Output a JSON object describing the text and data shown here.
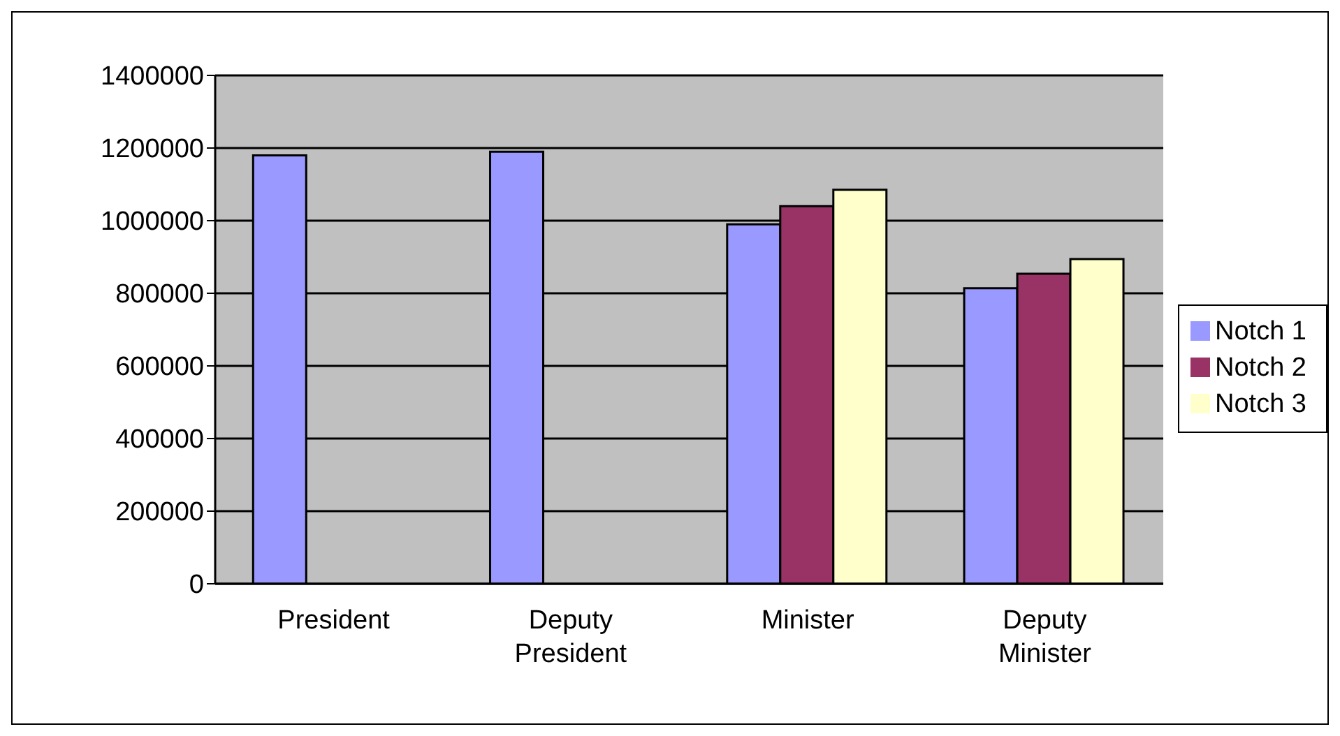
{
  "chart_data": {
    "type": "bar",
    "categories": [
      "President",
      "Deputy President",
      "Minister",
      "Deputy Minister"
    ],
    "series": [
      {
        "name": "Notch 1",
        "color": "#9999ff",
        "values": [
          1180000,
          1190000,
          990000,
          814000
        ]
      },
      {
        "name": "Notch 2",
        "color": "#993366",
        "values": [
          null,
          null,
          1040000,
          854000
        ]
      },
      {
        "name": "Notch 3",
        "color": "#ffffcc",
        "values": [
          null,
          null,
          1085000,
          894000
        ]
      }
    ],
    "ylim": [
      0,
      1400000
    ],
    "yticks": [
      0,
      200000,
      400000,
      600000,
      800000,
      1000000,
      1200000,
      1400000
    ],
    "grid": "y",
    "legend": "right"
  }
}
